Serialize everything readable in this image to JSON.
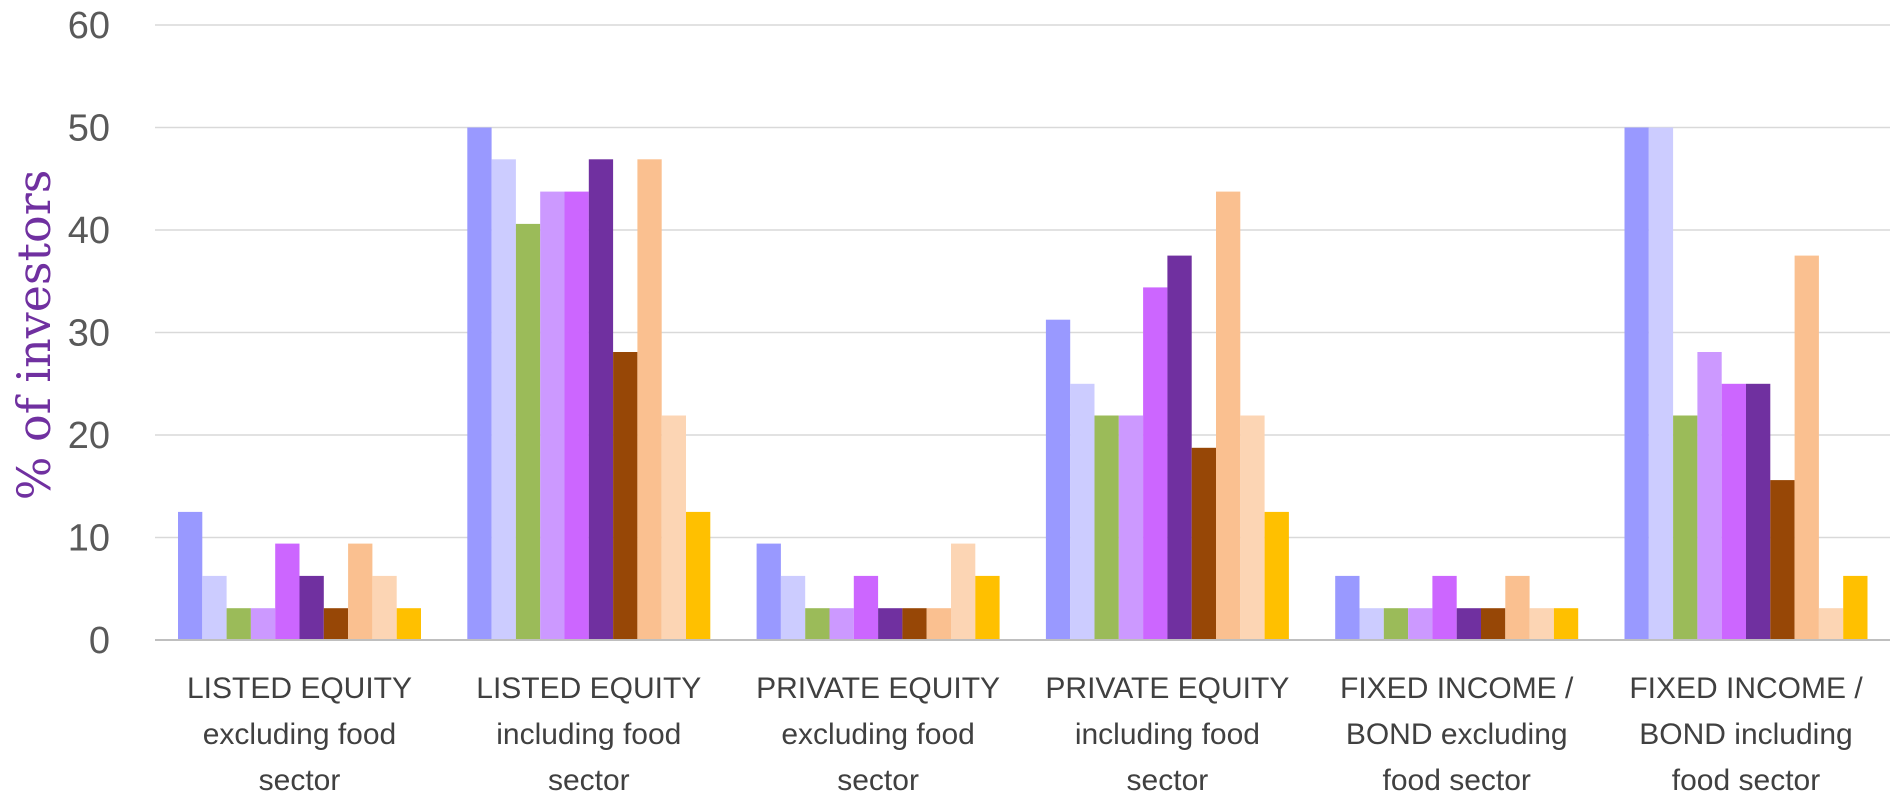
{
  "chart_data": {
    "type": "bar",
    "ylabel": "% of investors",
    "ylim": [
      0,
      60
    ],
    "yticks": [
      0,
      10,
      20,
      30,
      40,
      50,
      60
    ],
    "grid": true,
    "legend": "none",
    "categories": [
      [
        "LISTED EQUITY",
        "excluding food",
        "sector"
      ],
      [
        "LISTED EQUITY",
        "including food",
        "sector"
      ],
      [
        "PRIVATE EQUITY",
        "excluding food",
        "sector"
      ],
      [
        "PRIVATE EQUITY",
        "including food",
        "sector"
      ],
      [
        "FIXED INCOME /",
        "BOND excluding",
        "food sector"
      ],
      [
        "FIXED INCOME /",
        "BOND including",
        "food sector"
      ]
    ],
    "series": [
      {
        "color": "#9999ff",
        "values": [
          12.5,
          50,
          9.4,
          31.25,
          6.25,
          50
        ]
      },
      {
        "color": "#ccccff",
        "values": [
          6.25,
          46.9,
          6.25,
          25,
          3.1,
          50
        ]
      },
      {
        "color": "#9bbb59",
        "values": [
          3.1,
          40.6,
          3.1,
          21.9,
          3.1,
          21.9
        ]
      },
      {
        "color": "#cc99ff",
        "values": [
          3.1,
          43.75,
          3.1,
          21.9,
          3.1,
          28.1
        ]
      },
      {
        "color": "#cc66ff",
        "values": [
          9.4,
          43.75,
          6.25,
          34.4,
          6.25,
          25
        ]
      },
      {
        "color": "#7030a0",
        "values": [
          6.25,
          46.9,
          3.1,
          37.5,
          3.1,
          25
        ]
      },
      {
        "color": "#974706",
        "values": [
          3.1,
          28.1,
          3.1,
          18.75,
          3.1,
          15.6
        ]
      },
      {
        "color": "#fac090",
        "values": [
          9.4,
          46.9,
          3.1,
          43.75,
          6.25,
          37.5
        ]
      },
      {
        "color": "#fcd5b4",
        "values": [
          6.25,
          21.9,
          9.4,
          21.9,
          3.1,
          3.1
        ]
      },
      {
        "color": "#ffc000",
        "values": [
          3.1,
          12.5,
          6.25,
          12.5,
          3.1,
          6.25
        ]
      }
    ]
  }
}
